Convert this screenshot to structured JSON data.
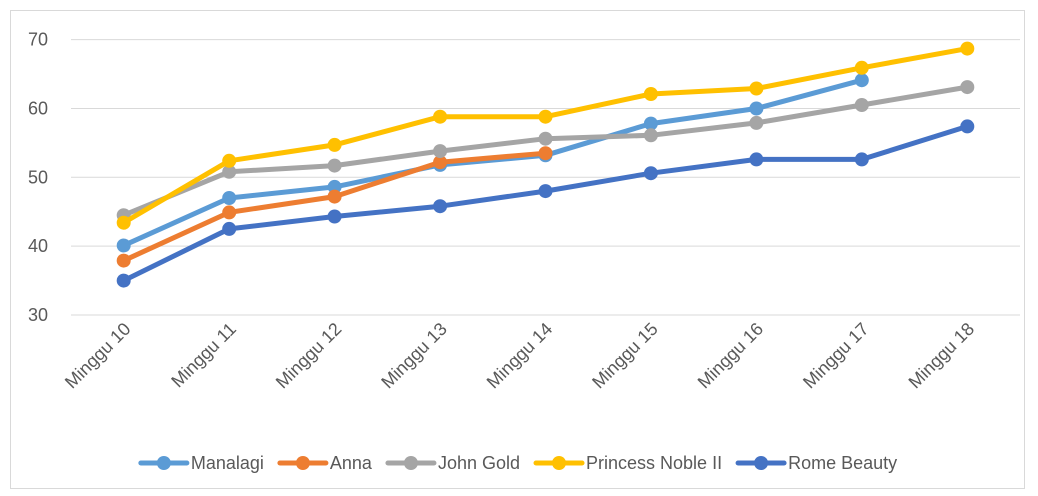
{
  "chart_data": {
    "type": "line",
    "title": "",
    "xlabel": "",
    "ylabel": "",
    "categories": [
      "Minggu 10",
      "Minggu 11",
      "Minggu 12",
      "Minggu 13",
      "Minggu 14",
      "Minggu 15",
      "Minggu 16",
      "Minggu 17",
      "Minggu 18"
    ],
    "ylim": [
      30,
      70
    ],
    "yticks": [
      "30",
      "40",
      "50",
      "60",
      "70"
    ],
    "grid": true,
    "legend_position": "bottom",
    "series": [
      {
        "name": "Manalagi",
        "color": "#5B9BD5",
        "values": [
          40.1,
          47.0,
          48.6,
          51.8,
          53.2,
          57.8,
          60.0,
          64.1,
          null
        ]
      },
      {
        "name": "Anna",
        "color": "#ED7D31",
        "values": [
          37.9,
          44.9,
          47.2,
          52.2,
          53.5,
          null,
          null,
          null,
          null
        ]
      },
      {
        "name": "John Gold",
        "color": "#A5A5A5",
        "values": [
          44.5,
          50.8,
          51.7,
          53.8,
          55.6,
          56.1,
          57.9,
          60.5,
          63.1
        ]
      },
      {
        "name": "Princess Noble II",
        "color": "#FFC000",
        "values": [
          43.4,
          52.4,
          54.7,
          58.8,
          58.8,
          62.1,
          62.9,
          65.9,
          68.7
        ]
      },
      {
        "name": "Rome Beauty",
        "color": "#4472C4",
        "values": [
          35.0,
          42.5,
          44.3,
          45.8,
          48.0,
          50.6,
          52.6,
          52.6,
          57.4
        ]
      }
    ]
  }
}
